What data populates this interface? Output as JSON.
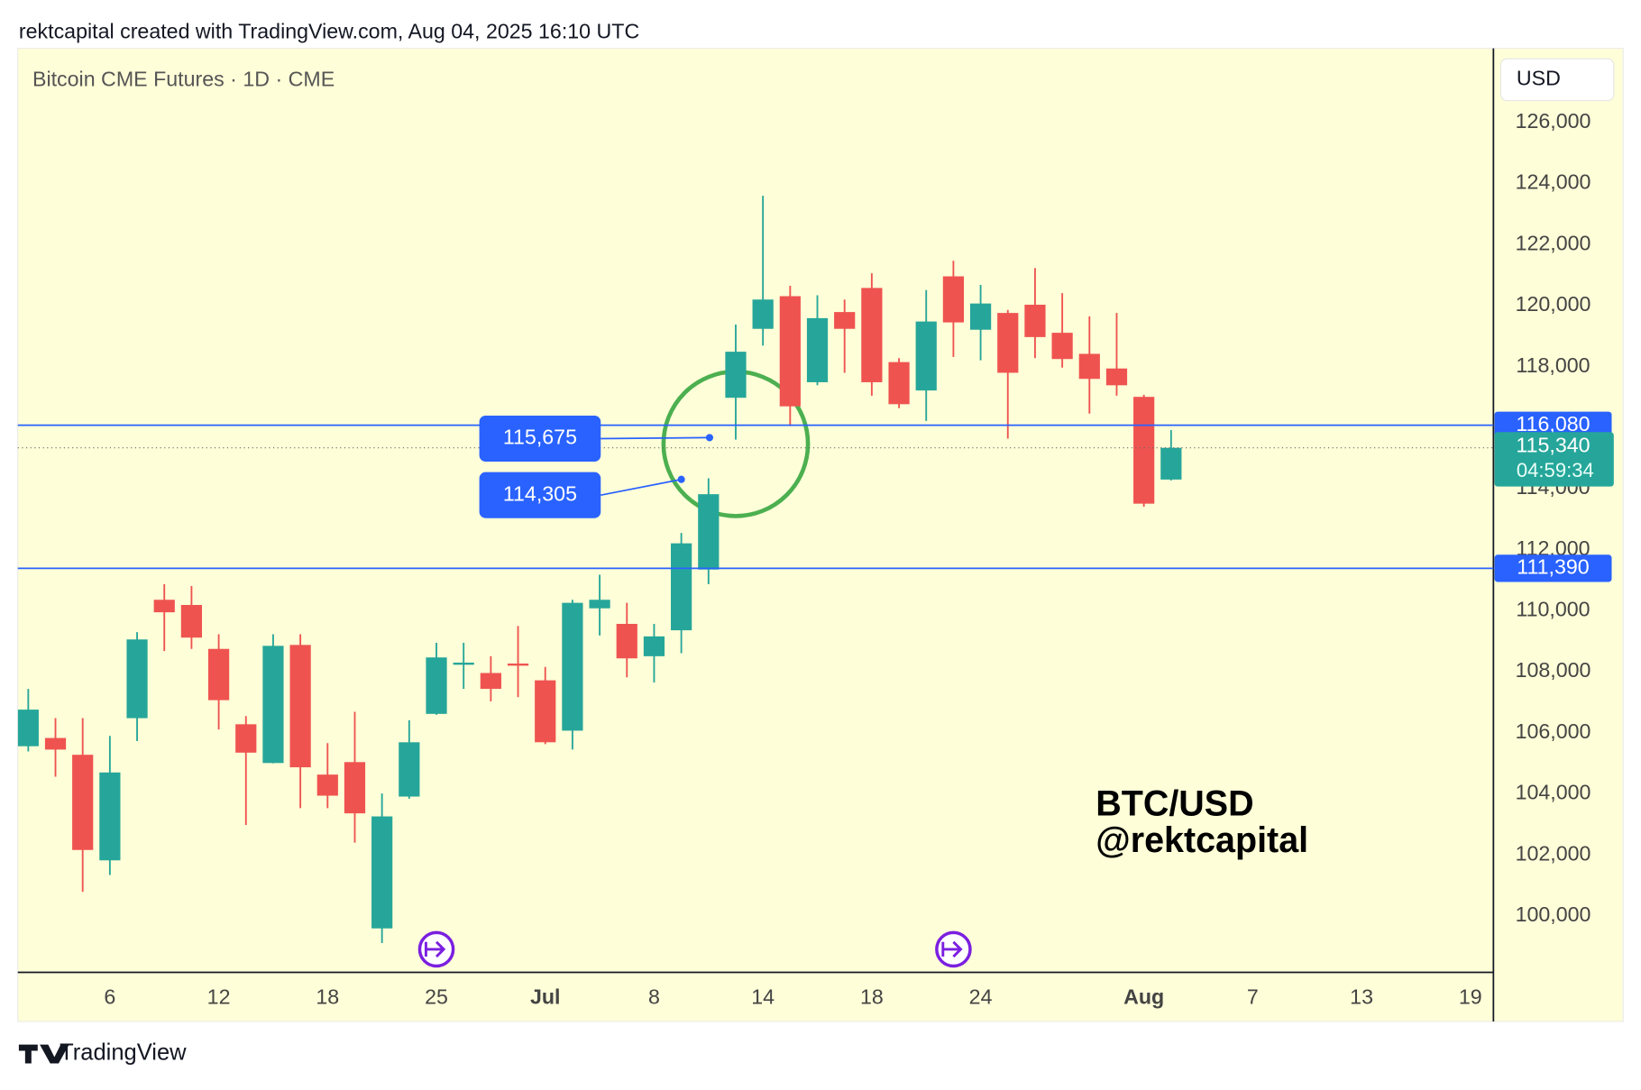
{
  "header": "rektcapital created with TradingView.com, Aug 04, 2025 16:10 UTC",
  "watermark": [
    "BTC/USD",
    "@rektcapital"
  ],
  "footer": "TradingView",
  "chart_data": {
    "type": "candlestick",
    "title": "Bitcoin CME Futures · 1D · CME",
    "currency": "USD",
    "up_color": "#26a69a",
    "down_color": "#ef5350",
    "categories": [
      null,
      null,
      null,
      "6",
      null,
      null,
      null,
      "12",
      null,
      null,
      null,
      "18",
      null,
      null,
      null,
      "25",
      null,
      null,
      null,
      "Jul",
      null,
      null,
      null,
      "8",
      null,
      null,
      null,
      "14",
      null,
      null,
      null,
      "18",
      null,
      null,
      null,
      "24",
      null,
      null,
      null,
      null,
      null,
      "Aug",
      null,
      null,
      null,
      "7",
      null,
      null,
      null,
      "13",
      null,
      null,
      null,
      "19"
    ],
    "open": [
      105560,
      105830,
      105280,
      101820,
      106480,
      110360,
      110190,
      108750,
      106280,
      105010,
      108880,
      104630,
      105040,
      99590,
      103910,
      106620,
      108230,
      107960,
      108270,
      107720,
      106070,
      110080,
      109570,
      108510,
      109360,
      111350,
      116980,
      119240,
      120310,
      117490,
      119790,
      120580,
      118150,
      117220,
      120960,
      119210,
      119760,
      120030,
      119110,
      118420,
      117940,
      117010,
      114300,
      null,
      null,
      null,
      null,
      null,
      null,
      null,
      null,
      null,
      null,
      null
    ],
    "high": [
      107440,
      106480,
      106480,
      105900,
      109300,
      110870,
      110810,
      109230,
      106550,
      109230,
      109230,
      105660,
      106690,
      104010,
      106410,
      108950,
      108950,
      108510,
      109500,
      108160,
      110360,
      111180,
      110260,
      109570,
      112550,
      114340,
      119380,
      123600,
      120650,
      120340,
      120200,
      121060,
      118280,
      120510,
      121470,
      120680,
      119860,
      121230,
      120410,
      119650,
      119760,
      117080,
      115920,
      null,
      null,
      null,
      null,
      null,
      null,
      null,
      null,
      null,
      null,
      null
    ],
    "low": [
      105390,
      104560,
      100790,
      101340,
      105730,
      108680,
      108750,
      106110,
      102980,
      105000,
      103530,
      103530,
      102400,
      99110,
      103840,
      106590,
      107440,
      107030,
      107170,
      105630,
      105450,
      109190,
      107820,
      107650,
      108610,
      110870,
      115610,
      118690,
      116050,
      117390,
      117800,
      117050,
      116640,
      116220,
      118320,
      118210,
      115640,
      118280,
      117970,
      116460,
      117050,
      113410,
      114270,
      null,
      null,
      null,
      null,
      null,
      null,
      null,
      null,
      null,
      null,
      null
    ],
    "close": [
      106760,
      105450,
      102160,
      104700,
      109060,
      109950,
      109120,
      107070,
      105350,
      108850,
      104870,
      103940,
      103360,
      103260,
      105690,
      108470,
      108300,
      107440,
      108200,
      105690,
      110260,
      110360,
      108440,
      109160,
      112210,
      113820,
      118490,
      120200,
      116700,
      119590,
      119240,
      117490,
      116770,
      119480,
      119450,
      120070,
      117800,
      118970,
      118250,
      117600,
      117390,
      113510,
      115340,
      null,
      null,
      null,
      null,
      null,
      null,
      null,
      null,
      null,
      null,
      null
    ],
    "ylim": [
      98150,
      128400
    ],
    "yticks": [
      {
        "value": 100000,
        "label": "100,000"
      },
      {
        "value": 102000,
        "label": "102,000"
      },
      {
        "value": 104000,
        "label": "104,000"
      },
      {
        "value": 106000,
        "label": "106,000"
      },
      {
        "value": 108000,
        "label": "108,000"
      },
      {
        "value": 110000,
        "label": "110,000"
      },
      {
        "value": 112000,
        "label": "112,000"
      },
      {
        "value": 114000,
        "label": "114,000"
      },
      {
        "value": 118000,
        "label": "118,000"
      },
      {
        "value": 120000,
        "label": "120,000"
      },
      {
        "value": 122000,
        "label": "122,000"
      },
      {
        "value": 124000,
        "label": "124,000"
      },
      {
        "value": 126000,
        "label": "126,000"
      }
    ],
    "lines": [
      {
        "value": 116080,
        "label": "116,080",
        "color": "#2962ff"
      },
      {
        "value": 111390,
        "label": "111,390",
        "color": "#2962ff"
      }
    ],
    "annotations": [
      {
        "value": 115675,
        "label": "115,675"
      },
      {
        "value": 114305,
        "label": "114,305"
      }
    ],
    "last_price": {
      "value": 115340,
      "label": "115,340",
      "countdown": "04:59:34"
    }
  }
}
